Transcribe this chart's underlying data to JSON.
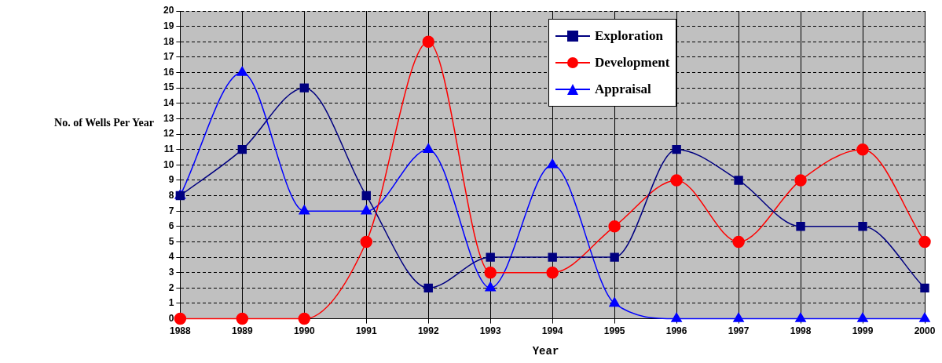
{
  "chart_data": {
    "type": "line",
    "xlabel": "Year",
    "ylabel": "No. of Wells Per Year",
    "categories": [
      "1988",
      "1989",
      "1990",
      "1991",
      "1992",
      "1993",
      "1994",
      "1995",
      "1996",
      "1997",
      "1998",
      "1999",
      "2000"
    ],
    "series": [
      {
        "name": "Exploration",
        "color": "#000080",
        "marker": "square",
        "values": [
          8,
          11,
          15,
          8,
          2,
          4,
          4,
          4,
          11,
          9,
          6,
          6,
          2
        ]
      },
      {
        "name": "Development",
        "color": "#ff0000",
        "marker": "circle",
        "values": [
          0,
          0,
          0,
          5,
          18,
          3,
          3,
          6,
          9,
          5,
          9,
          11,
          5
        ]
      },
      {
        "name": "Appraisal",
        "color": "#0000ff",
        "marker": "triangle",
        "values": [
          8,
          16,
          7,
          7,
          11,
          2,
          10,
          1,
          0,
          0,
          0,
          0,
          0
        ]
      }
    ],
    "ylim": [
      0,
      20
    ],
    "yticks": [
      0,
      1,
      2,
      3,
      4,
      5,
      6,
      7,
      8,
      9,
      10,
      11,
      12,
      13,
      14,
      15,
      16,
      17,
      18,
      19,
      20
    ],
    "grid": true,
    "legend": "top right",
    "line_style": "solid"
  }
}
